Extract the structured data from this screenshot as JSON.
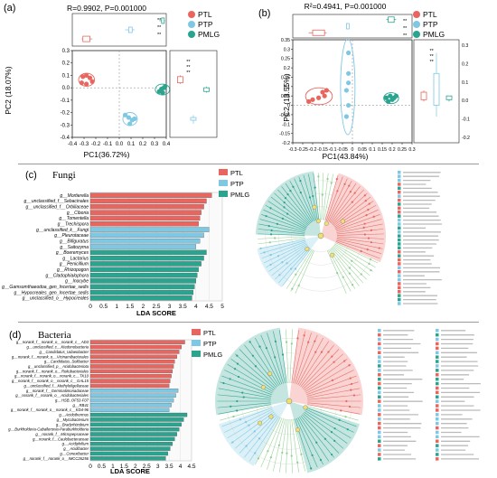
{
  "colors": {
    "PTL": "#e8665f",
    "PTP": "#7ec8e3",
    "PMLG": "#2aa38f",
    "axis": "#222222"
  },
  "panel_labels": [
    "(a)",
    "(b)",
    "(c)",
    "(d)"
  ],
  "chart_data": [
    {
      "type": "scatter",
      "panel": "a",
      "title": "R=0.9902, P=0.001000",
      "xlabel": "PC1(36.72%)",
      "ylabel": "PC2 (18.07%)",
      "xlim": [
        -0.4,
        0.4
      ],
      "ylim": [
        -0.4,
        0.3
      ],
      "xticks": [
        "-0.4",
        "-0.3",
        "-0.2",
        "-0.1",
        "0.0",
        "0.1",
        "0.2",
        "0.3",
        "0.4"
      ],
      "yticks": [
        "0.3",
        "0.2",
        "0.1",
        "0.0",
        "-0.1",
        "-0.2",
        "-0.3",
        "-0.4"
      ],
      "legend": [
        "PTL",
        "PTP",
        "PMLG"
      ],
      "legend_position": "right",
      "box_sig": [
        "**",
        "**",
        "**"
      ],
      "series": [
        {
          "name": "PTL",
          "points": [
            [
              -0.31,
              0.09
            ],
            [
              -0.28,
              0.1
            ],
            [
              -0.25,
              0.08
            ],
            [
              -0.23,
              0.05
            ],
            [
              -0.28,
              0.03
            ],
            [
              -0.32,
              0.04
            ]
          ]
        },
        {
          "name": "PTP",
          "points": [
            [
              0.05,
              -0.22
            ],
            [
              0.08,
              -0.24
            ],
            [
              0.11,
              -0.26
            ],
            [
              0.09,
              -0.29
            ],
            [
              0.13,
              -0.25
            ]
          ]
        },
        {
          "name": "PMLG",
          "points": [
            [
              0.34,
              -0.03
            ],
            [
              0.36,
              -0.01
            ],
            [
              0.38,
              0.0
            ],
            [
              0.37,
              -0.04
            ],
            [
              0.39,
              0.01
            ]
          ]
        }
      ]
    },
    {
      "type": "scatter",
      "panel": "b",
      "title": "R²=0.4941, P=0.001000",
      "xlabel": "PC1(43.84%)",
      "ylabel": "PC2 (13.55%)",
      "xlim": [
        -0.3,
        0.3
      ],
      "ylim": [
        -0.2,
        0.35
      ],
      "xticks": [
        "-0.3",
        "-0.25",
        "-0.2",
        "-0.15",
        "-0.1",
        "-0.05",
        "0",
        "0.05",
        "0.1",
        "0.15",
        "0.2",
        "0.25",
        "0.3"
      ],
      "yticks": [
        "0.35",
        "0.3",
        "0.25",
        "0.2",
        "0.15",
        "0.1",
        "0.05",
        "0",
        "-0.05",
        "-0.1",
        "-0.15",
        "-0.2"
      ],
      "legend": [
        "PTL",
        "PTP",
        "PMLG"
      ],
      "legend_position": "right",
      "side_yticks": [
        "0.3",
        "0.2",
        "0.1",
        "0.0",
        "-0.1",
        "-0.2"
      ],
      "box_sig": [
        "**",
        "**",
        "**"
      ],
      "series": [
        {
          "name": "PTL",
          "points": [
            [
              -0.22,
              0.02
            ],
            [
              -0.2,
              0.03
            ],
            [
              -0.17,
              0.04
            ],
            [
              -0.15,
              0.07
            ],
            [
              -0.13,
              0.08
            ],
            [
              -0.14,
              0.05
            ]
          ]
        },
        {
          "name": "PTP",
          "points": [
            [
              -0.02,
              0.28
            ],
            [
              -0.02,
              0.17
            ],
            [
              -0.03,
              0.08
            ],
            [
              -0.02,
              0.0
            ],
            [
              -0.03,
              -0.06
            ],
            [
              -0.02,
              0.12
            ]
          ]
        },
        {
          "name": "PMLG",
          "points": [
            [
              0.17,
              0.04
            ],
            [
              0.19,
              0.05
            ],
            [
              0.21,
              0.04
            ],
            [
              0.18,
              0.02
            ],
            [
              0.2,
              0.03
            ],
            [
              0.22,
              0.05
            ]
          ]
        }
      ]
    },
    {
      "type": "bar",
      "panel": "c",
      "title": "Fungi",
      "xlabel": "LDA SCORE",
      "xlim": [
        0,
        5
      ],
      "xticks": [
        "0",
        "0.5",
        "1",
        "1.5",
        "2",
        "2.5",
        "3",
        "3.5",
        "4",
        "4.5",
        "5"
      ],
      "legend": [
        "PTL",
        "PTP",
        "PMLG"
      ],
      "categories": [
        "g__Mortierella",
        "g__unclassified_f__Sebacinales",
        "g__unclassified_f__Orbiliaceae",
        "g__Ciboria",
        "g__Tomentella",
        "g__Trechispora",
        "g__unclassified_k__Fungi",
        "g__Pleurotaceae",
        "g__Bifiguratus",
        "g__Saitozyma",
        "g__Boeremyces",
        "g__Lactarius",
        "g__Penicillium",
        "g__Rhizopogon",
        "g__Cladophialophora",
        "g__Inocybe",
        "g__Gamsomthaeodoa_gen_Incertae_sedis",
        "g__Hypocreales_gen_Incertae_sedis",
        "g__unclassified_o__Hypocreales"
      ],
      "groups": [
        "PTL",
        "PTL",
        "PTL",
        "PTL",
        "PTL",
        "PTL",
        "PTP",
        "PTP",
        "PTP",
        "PTP",
        "PMLG",
        "PMLG",
        "PMLG",
        "PMLG",
        "PMLG",
        "PMLG",
        "PMLG",
        "PMLG",
        "PMLG"
      ],
      "values": [
        4.6,
        4.4,
        4.3,
        4.2,
        4.15,
        4.1,
        4.5,
        4.3,
        4.15,
        4.0,
        4.4,
        4.3,
        4.2,
        4.1,
        4.05,
        4.0,
        3.95,
        3.9,
        3.85
      ]
    },
    {
      "type": "bar",
      "panel": "d",
      "title": "Bacteria",
      "xlabel": "LDA SCORE",
      "xlim": [
        0,
        4.5
      ],
      "xticks": [
        "0",
        "0.5",
        "1",
        "1.5",
        "2",
        "2.5",
        "3",
        "3.5",
        "4",
        "4.5"
      ],
      "legend": [
        "PTL",
        "PTP",
        "PMLG"
      ],
      "categories": [
        "g__norank_f__norank_o__norank_c__AD3",
        "g__unclassified_c__Ktedonobacteria",
        "g__Candidatus_Udaeobacter",
        "g__norank_f__norank_o__Vicinamibacterales",
        "g__Candidatus_Solibacter",
        "g__unclassified_p__Acidobacteriota",
        "g__norank_f__norank_o__Rokubacteriales",
        "g__norank_f__norank_o__norank_c__TK10",
        "g__norank_f__norank_o__norank_c__GAL15",
        "g__unclassified_f__Methyloligellaceae",
        "g__norank_f__Gemmatimonadaceae",
        "g__norank_f__norank_o__Acidobacteriales",
        "g__HSB_OF53-F07",
        "g__RB41",
        "g__norank_f__norank_o__norank_c__KD4-96",
        "g__Acidothermus",
        "g__Mycobacterium",
        "g__Bradyrhizobium",
        "g__Burkholderia-Caballeronia-Paraburkholderia",
        "g__norank_f__Micropepsaceae",
        "g__norank_f__Caulobacteraceae",
        "g__Acidiphilium",
        "g__Acidibacter",
        "g__Conexibacter",
        "g__norank_f__norank_o__IMCC26256"
      ],
      "groups": [
        "PTL",
        "PTL",
        "PTL",
        "PTL",
        "PTL",
        "PTL",
        "PTL",
        "PTL",
        "PTL",
        "PTL",
        "PTP",
        "PTP",
        "PTP",
        "PTP",
        "PTP",
        "PMLG",
        "PMLG",
        "PMLG",
        "PMLG",
        "PMLG",
        "PMLG",
        "PMLG",
        "PMLG",
        "PMLG",
        "PMLG"
      ],
      "values": [
        4.2,
        4.05,
        3.95,
        3.85,
        3.75,
        3.7,
        3.65,
        3.6,
        3.55,
        3.5,
        3.9,
        3.8,
        3.7,
        3.6,
        3.5,
        4.3,
        4.15,
        4.05,
        3.95,
        3.85,
        3.75,
        3.65,
        3.55,
        3.45,
        3.35
      ]
    }
  ]
}
